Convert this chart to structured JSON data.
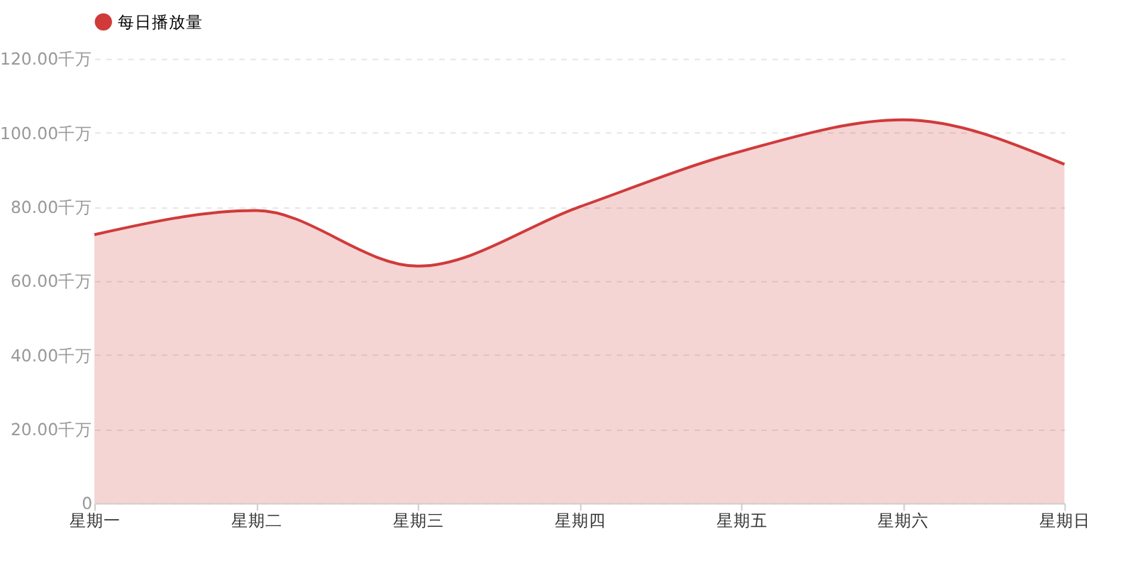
{
  "chart_data": {
    "type": "area",
    "categories": [
      "星期一",
      "星期二",
      "星期三",
      "星期四",
      "星期五",
      "星期六",
      "星期日"
    ],
    "series": [
      {
        "name": "每日播放量",
        "color": "#d03a3a",
        "values": [
          72.5,
          79,
          64,
          80,
          95,
          103.5,
          91.5
        ]
      }
    ],
    "ylim": [
      0,
      120
    ],
    "yticks": [
      0,
      {
        "value": 20,
        "label": "20.00千万"
      },
      {
        "value": 40,
        "label": "40.00千万"
      },
      {
        "value": 60,
        "label": "60.00千万"
      },
      {
        "value": 80,
        "label": "80.00千万"
      },
      {
        "value": 100,
        "label": "100.00千万"
      },
      {
        "value": 120,
        "label": "120.00千万"
      }
    ],
    "grid": "y",
    "legend": "top",
    "line_style": "solid"
  }
}
